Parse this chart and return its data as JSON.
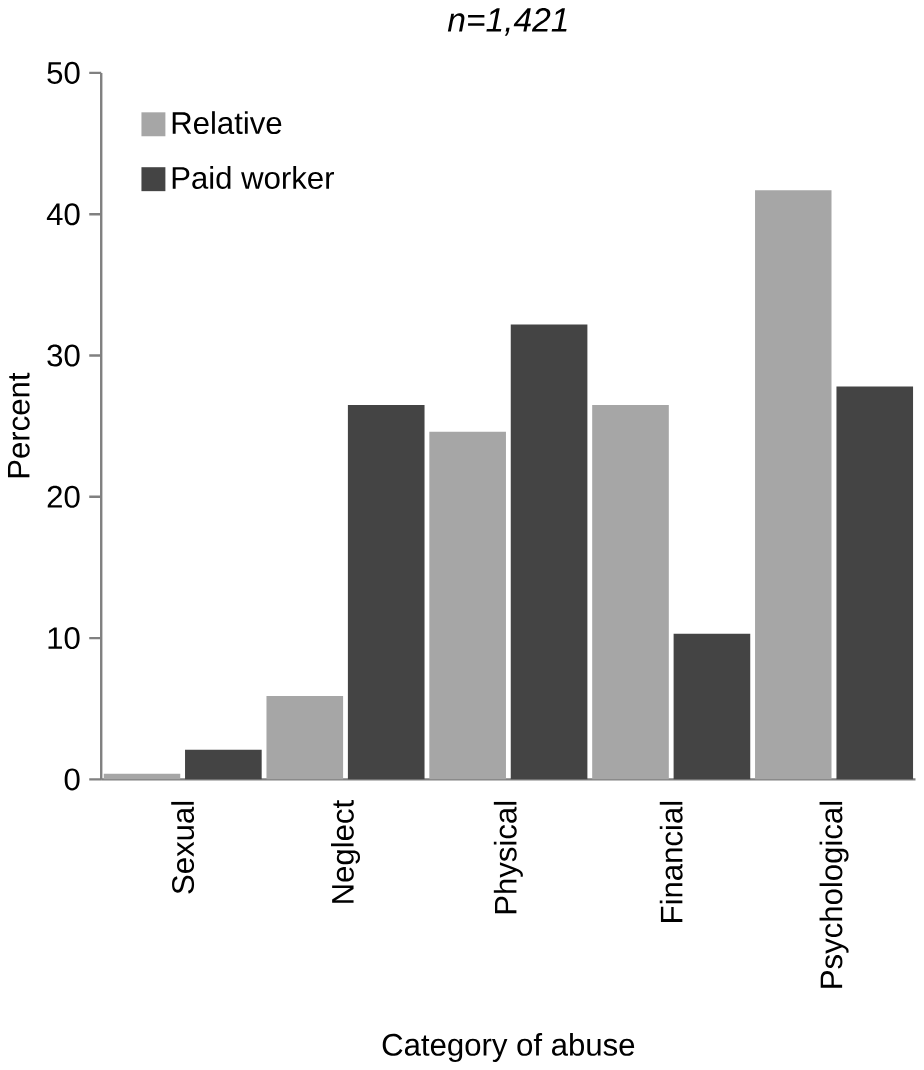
{
  "chart_data": {
    "type": "bar",
    "title": "*n=1,421*",
    "xlabel": "Category of abuse",
    "ylabel": "Percent",
    "categories": [
      "Sexual",
      "Neglect",
      "Physical",
      "Financial",
      "Psychological"
    ],
    "series": [
      {
        "name": "Relative",
        "color": "#a6a6a6",
        "values": [
          0.4,
          5.9,
          24.6,
          26.5,
          41.7
        ]
      },
      {
        "name": "Paid worker",
        "color": "#444444",
        "values": [
          2.1,
          26.5,
          32.2,
          10.3,
          27.8
        ]
      }
    ],
    "ylim": [
      0,
      50
    ],
    "yticks": [
      0,
      10,
      20,
      30,
      40,
      50
    ],
    "grid": false,
    "legend": "top left"
  }
}
